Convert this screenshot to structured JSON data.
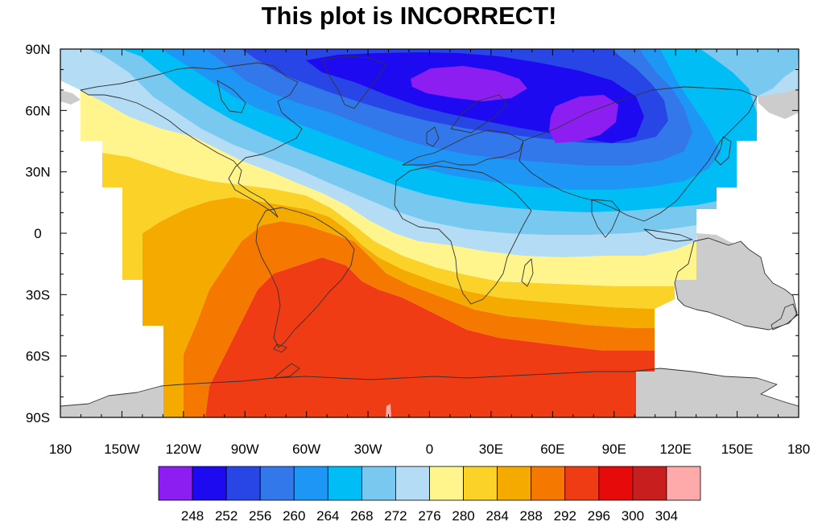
{
  "title": "This plot is INCORRECT!",
  "map": {
    "lon_ticks": [
      "180",
      "150W",
      "120W",
      "90W",
      "60W",
      "30W",
      "0",
      "30E",
      "60E",
      "90E",
      "120E",
      "150E",
      "180"
    ],
    "lat_ticks": [
      "90N",
      "60N",
      "30N",
      "0",
      "30S",
      "60S",
      "90S"
    ],
    "land_color": "#cccccc",
    "coast_color": "#333333"
  },
  "colorbar": {
    "colors": [
      "#8d1ef2",
      "#1e0af0",
      "#2846e6",
      "#3278eb",
      "#1e96f5",
      "#00bef5",
      "#78c8f0",
      "#b4dcf5",
      "#fff58c",
      "#fad228",
      "#f5aa00",
      "#f57800",
      "#f03c14",
      "#e60a0a",
      "#c81e1e",
      "#ffaaaa"
    ],
    "labels": [
      "248",
      "252",
      "256",
      "260",
      "264",
      "268",
      "272",
      "276",
      "280",
      "284",
      "288",
      "292",
      "296",
      "300",
      "304"
    ]
  }
}
